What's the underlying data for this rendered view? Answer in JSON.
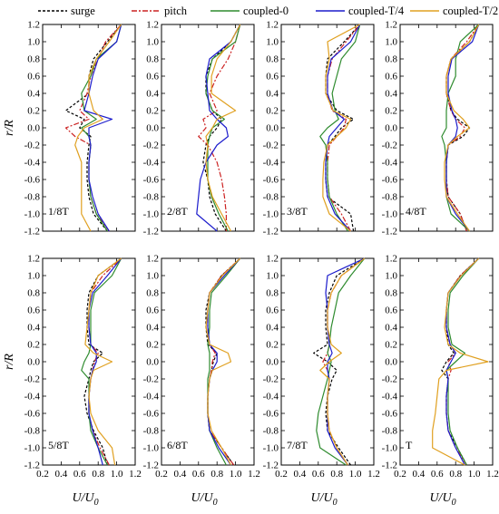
{
  "legend": [
    {
      "name": "surge",
      "color": "#000000",
      "dash": "3,2"
    },
    {
      "name": "pitch",
      "color": "#cc2222",
      "dash": "6,2,2,2"
    },
    {
      "name": "coupled-0",
      "color": "#2e8b2e",
      "dash": ""
    },
    {
      "name": "coupled-T/4",
      "color": "#1c1ccc",
      "dash": ""
    },
    {
      "name": "coupled-T/2",
      "color": "#e0a020",
      "dash": ""
    }
  ],
  "axes": {
    "ylabel": "r/R",
    "xlabel_base": "U/U",
    "xlabel_sub": "0",
    "x_ticks": [
      "0.2",
      "0.4",
      "0.6",
      "0.8",
      "1.0",
      "1.2"
    ],
    "y_ticks": [
      "-1.2",
      "-1.0",
      "-0.8",
      "-0.6",
      "-0.4",
      "-0.2",
      "0.0",
      "0.2",
      "0.4",
      "0.6",
      "0.8",
      "1.0",
      "1.2"
    ]
  },
  "chart_data": {
    "type": "line",
    "title": "",
    "xlabel": "U/U0",
    "ylabel": "r/R",
    "xlim": [
      0.2,
      1.2
    ],
    "ylim": [
      -1.2,
      1.2
    ],
    "grid": false,
    "legend_position": "top",
    "y": [
      -1.2,
      -1.0,
      -0.8,
      -0.6,
      -0.4,
      -0.2,
      -0.1,
      0.0,
      0.1,
      0.2,
      0.4,
      0.6,
      0.8,
      1.0,
      1.2
    ],
    "panels": [
      {
        "label": "1/8T",
        "series": [
          {
            "name": "surge",
            "values": [
              0.9,
              0.75,
              0.7,
              0.68,
              0.68,
              0.7,
              0.72,
              0.6,
              0.65,
              0.45,
              0.7,
              0.7,
              0.75,
              0.9,
              1.05
            ]
          },
          {
            "name": "pitch",
            "values": [
              0.92,
              0.78,
              0.72,
              0.7,
              0.7,
              0.72,
              0.55,
              0.45,
              0.7,
              0.6,
              0.68,
              0.72,
              0.8,
              0.88,
              1.05
            ]
          },
          {
            "name": "coupled-0",
            "values": [
              0.9,
              0.78,
              0.72,
              0.7,
              0.7,
              0.72,
              0.7,
              0.62,
              0.78,
              0.65,
              0.62,
              0.72,
              0.78,
              1.0,
              1.05
            ]
          },
          {
            "name": "coupled-T/4",
            "values": [
              0.92,
              0.8,
              0.74,
              0.7,
              0.7,
              0.72,
              0.7,
              0.7,
              0.95,
              0.65,
              0.7,
              0.74,
              0.8,
              1.0,
              1.05
            ]
          },
          {
            "name": "coupled-T/2",
            "values": [
              0.72,
              0.62,
              0.62,
              0.62,
              0.62,
              0.55,
              0.58,
              0.65,
              0.85,
              0.75,
              0.7,
              0.7,
              0.78,
              0.92,
              1.05
            ]
          }
        ]
      },
      {
        "label": "2/8T",
        "series": [
          {
            "name": "surge",
            "values": [
              0.9,
              0.78,
              0.72,
              0.7,
              0.65,
              0.68,
              0.72,
              0.8,
              0.85,
              0.75,
              0.68,
              0.68,
              0.75,
              0.95,
              1.05
            ]
          },
          {
            "name": "pitch",
            "values": [
              0.9,
              0.9,
              0.88,
              0.85,
              0.8,
              0.7,
              0.6,
              0.68,
              0.65,
              0.8,
              0.72,
              0.8,
              0.92,
              1.0,
              1.05
            ]
          },
          {
            "name": "coupled-0",
            "values": [
              0.92,
              0.82,
              0.74,
              0.7,
              0.7,
              0.7,
              0.72,
              0.75,
              0.88,
              0.75,
              0.68,
              0.7,
              0.75,
              1.0,
              1.05
            ]
          },
          {
            "name": "coupled-T/4",
            "values": [
              0.8,
              0.58,
              0.6,
              0.62,
              0.68,
              0.8,
              0.92,
              0.9,
              0.8,
              0.72,
              0.7,
              0.68,
              0.72,
              0.95,
              1.05
            ]
          },
          {
            "name": "coupled-T/2",
            "values": [
              0.95,
              0.85,
              0.75,
              0.7,
              0.68,
              0.7,
              0.68,
              0.75,
              0.8,
              1.0,
              0.74,
              0.74,
              0.8,
              0.95,
              1.05
            ]
          }
        ]
      },
      {
        "label": "3/8T",
        "series": [
          {
            "name": "surge",
            "values": [
              0.98,
              0.95,
              0.7,
              0.68,
              0.68,
              0.7,
              0.78,
              0.85,
              0.98,
              0.8,
              0.68,
              0.68,
              0.7,
              0.88,
              1.05
            ]
          },
          {
            "name": "pitch",
            "values": [
              0.95,
              0.85,
              0.72,
              0.7,
              0.7,
              0.72,
              0.8,
              0.88,
              0.9,
              0.75,
              0.7,
              0.7,
              0.75,
              0.9,
              1.05
            ]
          },
          {
            "name": "coupled-0",
            "values": [
              0.92,
              0.8,
              0.72,
              0.7,
              0.7,
              0.68,
              0.62,
              0.7,
              0.82,
              0.78,
              0.75,
              0.8,
              0.85,
              1.0,
              1.05
            ]
          },
          {
            "name": "coupled-T/4",
            "values": [
              0.95,
              0.78,
              0.7,
              0.68,
              0.68,
              0.7,
              0.72,
              0.8,
              0.88,
              0.76,
              0.7,
              0.7,
              0.74,
              0.95,
              1.05
            ]
          },
          {
            "name": "coupled-T/2",
            "values": [
              0.95,
              0.72,
              0.65,
              0.65,
              0.66,
              0.7,
              0.8,
              0.9,
              0.95,
              0.76,
              0.68,
              0.68,
              0.72,
              0.7,
              1.05
            ]
          }
        ]
      },
      {
        "label": "4/8T",
        "series": [
          {
            "name": "surge",
            "values": [
              0.92,
              0.85,
              0.72,
              0.7,
              0.7,
              0.72,
              0.88,
              0.95,
              0.82,
              0.75,
              0.7,
              0.7,
              0.75,
              0.95,
              1.05
            ]
          },
          {
            "name": "pitch",
            "values": [
              0.92,
              0.85,
              0.72,
              0.7,
              0.7,
              0.72,
              0.85,
              0.9,
              0.8,
              0.75,
              0.7,
              0.7,
              0.75,
              0.92,
              1.05
            ]
          },
          {
            "name": "coupled-0",
            "values": [
              0.95,
              0.75,
              0.7,
              0.7,
              0.7,
              0.68,
              0.65,
              0.7,
              0.7,
              0.7,
              0.72,
              0.8,
              0.8,
              0.85,
              1.05
            ]
          },
          {
            "name": "coupled-T/4",
            "values": [
              0.95,
              0.8,
              0.7,
              0.7,
              0.7,
              0.72,
              0.8,
              0.82,
              0.8,
              0.76,
              0.72,
              0.72,
              0.76,
              0.98,
              1.05
            ]
          },
          {
            "name": "coupled-T/2",
            "values": [
              0.95,
              0.82,
              0.7,
              0.68,
              0.68,
              0.72,
              0.82,
              0.95,
              0.88,
              0.78,
              0.7,
              0.7,
              0.75,
              0.95,
              1.05
            ]
          }
        ]
      },
      {
        "label": "5/8T",
        "series": [
          {
            "name": "surge",
            "values": [
              0.9,
              0.85,
              0.75,
              0.68,
              0.65,
              0.7,
              0.72,
              0.75,
              0.85,
              0.7,
              0.68,
              0.68,
              0.7,
              0.8,
              1.05
            ]
          },
          {
            "name": "pitch",
            "values": [
              0.92,
              0.82,
              0.74,
              0.7,
              0.7,
              0.72,
              0.74,
              0.76,
              0.8,
              0.72,
              0.7,
              0.7,
              0.72,
              0.85,
              1.05
            ]
          },
          {
            "name": "coupled-0",
            "values": [
              0.9,
              0.8,
              0.72,
              0.7,
              0.7,
              0.7,
              0.62,
              0.65,
              0.7,
              0.72,
              0.72,
              0.72,
              0.76,
              0.95,
              1.05
            ]
          },
          {
            "name": "coupled-T/4",
            "values": [
              0.85,
              0.8,
              0.74,
              0.7,
              0.7,
              0.72,
              0.74,
              0.78,
              0.78,
              0.72,
              0.7,
              0.7,
              0.74,
              0.9,
              1.05
            ]
          },
          {
            "name": "coupled-T/2",
            "values": [
              0.98,
              0.95,
              0.8,
              0.72,
              0.7,
              0.72,
              0.75,
              0.95,
              0.75,
              0.66,
              0.68,
              0.7,
              0.72,
              0.8,
              1.05
            ]
          }
        ]
      },
      {
        "label": "6/8T",
        "series": [
          {
            "name": "surge",
            "values": [
              0.98,
              0.85,
              0.72,
              0.7,
              0.7,
              0.72,
              0.74,
              0.76,
              0.8,
              0.7,
              0.68,
              0.68,
              0.72,
              0.85,
              1.05
            ]
          },
          {
            "name": "pitch",
            "values": [
              0.98,
              0.85,
              0.72,
              0.7,
              0.7,
              0.72,
              0.74,
              0.75,
              0.78,
              0.72,
              0.7,
              0.7,
              0.72,
              0.85,
              1.05
            ]
          },
          {
            "name": "coupled-0",
            "values": [
              0.9,
              0.8,
              0.72,
              0.7,
              0.7,
              0.7,
              0.72,
              0.72,
              0.72,
              0.7,
              0.72,
              0.72,
              0.74,
              0.9,
              1.05
            ]
          },
          {
            "name": "coupled-T/4",
            "values": [
              0.95,
              0.82,
              0.72,
              0.7,
              0.7,
              0.72,
              0.75,
              0.8,
              0.8,
              0.72,
              0.7,
              0.7,
              0.72,
              0.88,
              1.05
            ]
          },
          {
            "name": "coupled-T/2",
            "values": [
              0.95,
              0.85,
              0.74,
              0.7,
              0.7,
              0.72,
              0.75,
              0.95,
              0.92,
              0.72,
              0.68,
              0.7,
              0.72,
              0.86,
              1.05
            ]
          }
        ]
      },
      {
        "label": "7/8T",
        "series": [
          {
            "name": "surge",
            "values": [
              0.95,
              0.82,
              0.7,
              0.68,
              0.7,
              0.75,
              0.8,
              0.7,
              0.55,
              0.7,
              0.68,
              0.68,
              0.72,
              0.8,
              1.1
            ]
          },
          {
            "name": "pitch",
            "values": [
              0.92,
              0.8,
              0.72,
              0.7,
              0.7,
              0.72,
              0.7,
              0.65,
              0.7,
              0.72,
              0.7,
              0.7,
              0.74,
              0.85,
              1.1
            ]
          },
          {
            "name": "coupled-0",
            "values": [
              0.9,
              0.62,
              0.58,
              0.6,
              0.65,
              0.7,
              0.72,
              0.74,
              0.7,
              0.72,
              0.74,
              0.78,
              0.82,
              0.95,
              1.1
            ]
          },
          {
            "name": "coupled-T/4",
            "values": [
              0.92,
              0.78,
              0.7,
              0.7,
              0.7,
              0.72,
              0.7,
              0.7,
              0.75,
              0.72,
              0.7,
              0.7,
              0.68,
              0.7,
              1.1
            ]
          },
          {
            "name": "coupled-T/2",
            "values": [
              0.92,
              0.8,
              0.72,
              0.7,
              0.7,
              0.72,
              0.62,
              0.72,
              0.85,
              0.74,
              0.7,
              0.7,
              0.74,
              0.85,
              1.1
            ]
          }
        ]
      },
      {
        "label": "T",
        "series": [
          {
            "name": "surge",
            "values": [
              0.92,
              0.82,
              0.72,
              0.7,
              0.7,
              0.72,
              0.65,
              0.7,
              0.78,
              0.72,
              0.7,
              0.7,
              0.72,
              0.85,
              1.05
            ]
          },
          {
            "name": "pitch",
            "values": [
              0.92,
              0.8,
              0.72,
              0.7,
              0.7,
              0.72,
              0.75,
              0.72,
              0.8,
              0.74,
              0.7,
              0.7,
              0.72,
              0.85,
              1.05
            ]
          },
          {
            "name": "coupled-0",
            "values": [
              0.92,
              0.82,
              0.74,
              0.72,
              0.72,
              0.72,
              0.7,
              0.8,
              0.9,
              0.76,
              0.72,
              0.72,
              0.74,
              0.88,
              1.05
            ]
          },
          {
            "name": "coupled-T/4",
            "values": [
              0.9,
              0.8,
              0.72,
              0.7,
              0.7,
              0.72,
              0.7,
              0.75,
              0.8,
              0.74,
              0.7,
              0.7,
              0.72,
              0.86,
              1.05
            ]
          },
          {
            "name": "coupled-T/2",
            "values": [
              0.9,
              0.55,
              0.55,
              0.58,
              0.6,
              0.62,
              0.7,
              1.15,
              0.85,
              0.72,
              0.68,
              0.7,
              0.72,
              0.86,
              1.05
            ]
          }
        ]
      }
    ]
  }
}
